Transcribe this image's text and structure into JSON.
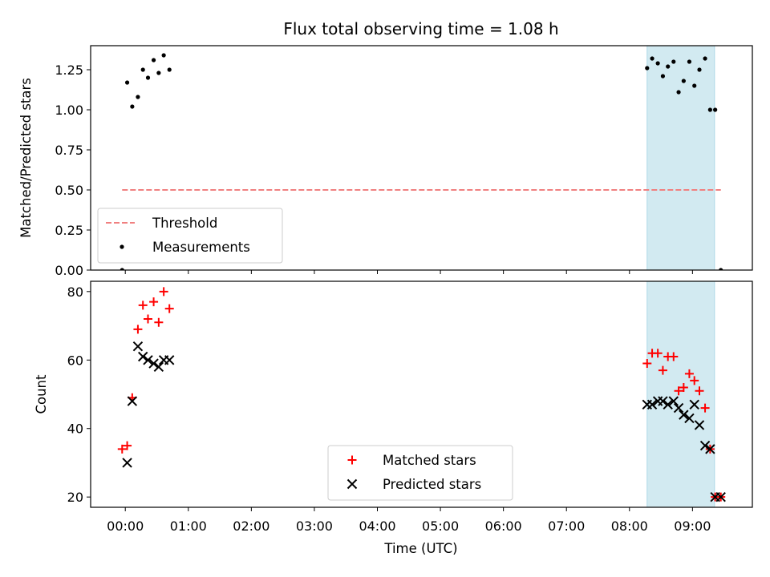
{
  "colors": {
    "matched": "#ff0000",
    "predicted": "#000000",
    "threshold": "#f08080",
    "measurements": "#000000",
    "highlight": "#add8e6"
  },
  "chart_data": {
    "title": "Flux total observing time = 1.08 h",
    "shared_x": {
      "label": "Time (UTC)",
      "unit": "hours since 00:00 UTC",
      "range": [
        -0.55,
        9.95
      ],
      "ticks": [
        0,
        1,
        2,
        3,
        4,
        5,
        6,
        7,
        8,
        9
      ],
      "tick_labels": [
        "00:00",
        "01:00",
        "02:00",
        "03:00",
        "04:00",
        "05:00",
        "06:00",
        "07:00",
        "08:00",
        "09:00"
      ]
    },
    "highlight_span": {
      "x": [
        8.28,
        9.35
      ]
    },
    "panels": [
      {
        "type": "scatter",
        "ylabel": "Matched/Predicted stars",
        "ylim": [
          0,
          1.4
        ],
        "yticks": [
          0,
          0.25,
          0.5,
          0.75,
          1.0,
          1.25
        ],
        "ytick_labels": [
          "0.00",
          "0.25",
          "0.50",
          "0.75",
          "1.00",
          "1.25"
        ],
        "legend": {
          "position": "lower-left",
          "entries": [
            "Threshold",
            "Measurements"
          ]
        },
        "threshold": {
          "name": "Threshold",
          "y": 0.5,
          "x": [
            -0.05,
            9.45
          ]
        },
        "series": [
          {
            "name": "Measurements",
            "marker": "dot",
            "x": [
              -0.05,
              0.03,
              0.11,
              0.2,
              0.28,
              0.36,
              0.45,
              0.53,
              0.61,
              0.7,
              8.28,
              8.36,
              8.45,
              8.53,
              8.61,
              8.7,
              8.78,
              8.86,
              8.95,
              9.03,
              9.11,
              9.2,
              9.28,
              9.36,
              9.45
            ],
            "y": [
              0.0,
              1.17,
              1.02,
              1.08,
              1.25,
              1.2,
              1.31,
              1.23,
              1.34,
              1.25,
              1.26,
              1.32,
              1.29,
              1.21,
              1.27,
              1.3,
              1.11,
              1.18,
              1.3,
              1.15,
              1.25,
              1.32,
              1.0,
              1.0,
              0.0
            ]
          }
        ]
      },
      {
        "type": "scatter",
        "ylabel": "Count",
        "ylim": [
          17,
          83
        ],
        "yticks": [
          20,
          40,
          60,
          80
        ],
        "ytick_labels": [
          "20",
          "40",
          "60",
          "80"
        ],
        "legend": {
          "position": "lower-center",
          "entries": [
            "Matched stars",
            "Predicted stars"
          ]
        },
        "series": [
          {
            "name": "Matched stars",
            "marker": "plus",
            "x": [
              -0.05,
              0.03,
              0.11,
              0.2,
              0.28,
              0.36,
              0.45,
              0.53,
              0.61,
              0.7,
              8.28,
              8.36,
              8.45,
              8.53,
              8.61,
              8.7,
              8.78,
              8.86,
              8.95,
              9.03,
              9.11,
              9.2,
              9.28,
              9.36,
              9.45
            ],
            "y": [
              34,
              35,
              49,
              69,
              76,
              72,
              77,
              71,
              80,
              75,
              59,
              62,
              62,
              57,
              61,
              61,
              51,
              52,
              56,
              54,
              51,
              46,
              34,
              20,
              20
            ]
          },
          {
            "name": "Predicted stars",
            "marker": "x",
            "x": [
              0.03,
              0.11,
              0.2,
              0.28,
              0.36,
              0.45,
              0.53,
              0.61,
              0.7,
              8.28,
              8.36,
              8.45,
              8.53,
              8.61,
              8.7,
              8.78,
              8.86,
              8.95,
              9.03,
              9.11,
              9.2,
              9.28,
              9.36,
              9.45
            ],
            "y": [
              30,
              48,
              64,
              61,
              60,
              59,
              58,
              60,
              60,
              47,
              47,
              48,
              48,
              47,
              48,
              46,
              44,
              43,
              47,
              41,
              35,
              34,
              20,
              20
            ]
          }
        ]
      }
    ]
  }
}
